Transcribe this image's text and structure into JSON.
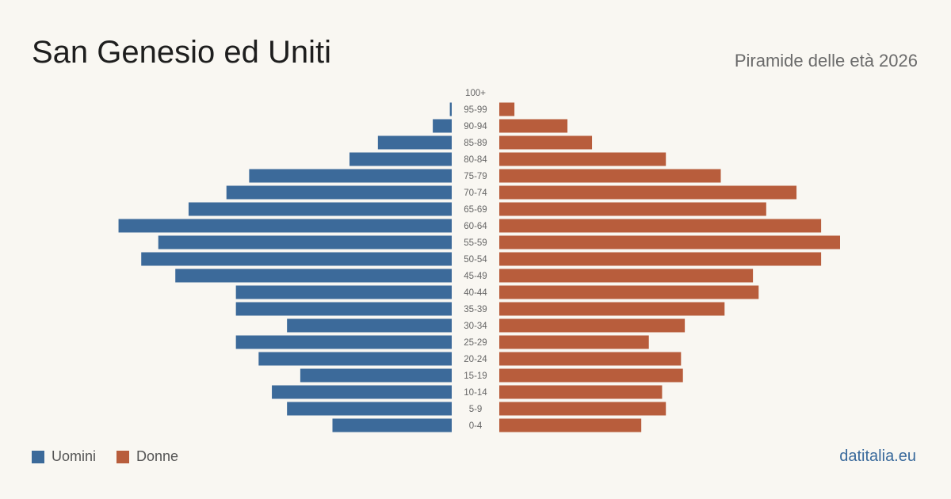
{
  "header": {
    "title": "San Genesio ed Uniti",
    "subtitle": "Piramide delle età 2026"
  },
  "legend": {
    "men_label": "Uomini",
    "women_label": "Donne"
  },
  "brand": "datitalia.eu",
  "colors": {
    "men": "#3c6a9a",
    "women": "#b85d3c",
    "background": "#f9f7f2"
  },
  "chart_data": {
    "type": "bar",
    "orientation": "horizontal-pyramid",
    "title": "San Genesio ed Uniti",
    "subtitle": "Piramide delle età 2026",
    "categories": [
      "100+",
      "95-99",
      "90-94",
      "85-89",
      "80-84",
      "75-79",
      "70-74",
      "65-69",
      "60-64",
      "55-59",
      "50-54",
      "45-49",
      "40-44",
      "35-39",
      "30-34",
      "25-29",
      "20-24",
      "15-19",
      "10-14",
      "5-9",
      "0-4"
    ],
    "series": [
      {
        "name": "Uomini",
        "values": [
          0,
          1,
          10,
          39,
          54,
          107,
          119,
          139,
          176,
          155,
          164,
          146,
          114,
          114,
          87,
          114,
          102,
          80,
          95,
          87,
          63
        ]
      },
      {
        "name": "Donne",
        "values": [
          0,
          8,
          36,
          49,
          88,
          117,
          157,
          141,
          170,
          180,
          170,
          134,
          137,
          119,
          98,
          79,
          96,
          97,
          86,
          88,
          75
        ]
      }
    ],
    "grid": false,
    "legend_position": "bottom-left"
  }
}
